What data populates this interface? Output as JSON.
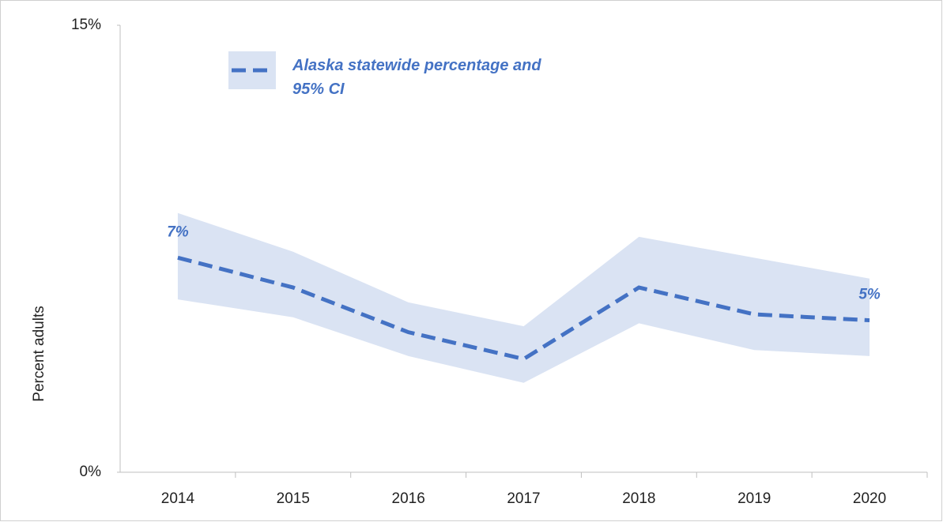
{
  "chart_data": {
    "type": "line",
    "y_axis_label": "Percent adults",
    "categories": [
      "2014",
      "2015",
      "2016",
      "2017",
      "2018",
      "2019",
      "2020"
    ],
    "series": [
      {
        "name": "Alaska statewide percentage and 95% CI",
        "color": "#4472c4",
        "band_color": "#dae3f3",
        "values": [
          7.2,
          6.2,
          4.7,
          3.8,
          6.2,
          5.3,
          5.1
        ],
        "value_labels": [
          "7%",
          null,
          null,
          null,
          null,
          null,
          "5%"
        ],
        "ci_upper": [
          8.7,
          7.4,
          5.7,
          4.9,
          7.9,
          7.2,
          6.5
        ],
        "ci_lower": [
          5.8,
          5.2,
          3.9,
          3.0,
          5.0,
          4.1,
          3.9
        ]
      }
    ],
    "ylim": [
      0,
      15
    ],
    "yticks": [
      {
        "value": 0,
        "label": "0%"
      },
      {
        "value": 15,
        "label": "15%"
      }
    ],
    "grid": false
  }
}
